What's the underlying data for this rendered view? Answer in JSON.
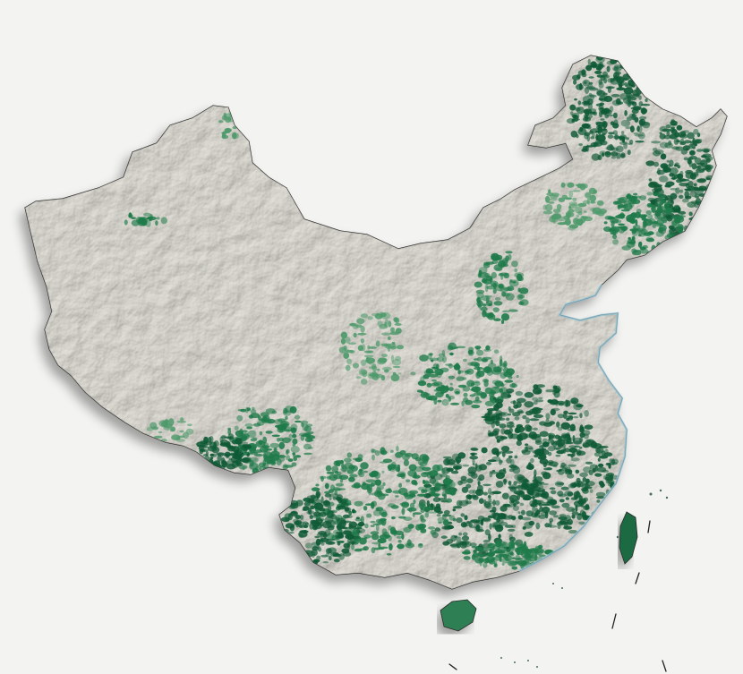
{
  "map": {
    "region": "China",
    "style": "shaded relief with forest cover",
    "labels_visible": false
  },
  "colors": {
    "background": "#f3f3f1",
    "land": "#ecebe4",
    "relief_shadow": "#cfcdc4",
    "relief_highlight": "#fbfbf8",
    "forest_dark": "#0f5a36",
    "forest_mid": "#1f7a4a",
    "forest_light": "#4f9a6c",
    "coast_water": "#8fc3d6",
    "border": "#2a2a2a"
  },
  "layers": [
    {
      "name": "mainland",
      "icon": "landmass-icon"
    },
    {
      "name": "forest-cover",
      "icon": "forest-icon"
    },
    {
      "name": "hainan-island",
      "icon": "island-icon"
    },
    {
      "name": "taiwan-island",
      "icon": "island-icon"
    },
    {
      "name": "south-china-sea-dashes",
      "icon": "dashed-line-icon"
    }
  ]
}
